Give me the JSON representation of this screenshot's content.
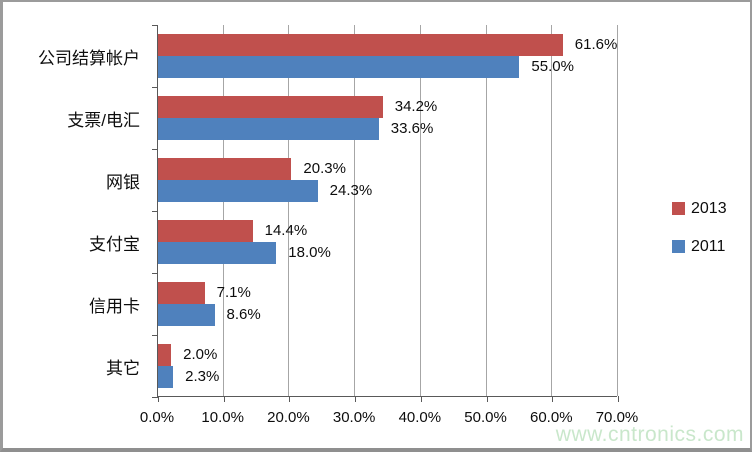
{
  "watermark": {
    "text": "www.cntronics.com",
    "color": "#c7e6c9"
  },
  "chart_data": {
    "type": "bar",
    "orientation": "horizontal",
    "title": "",
    "categories": [
      "公司结算帐户",
      "支票/电汇",
      "网银",
      "支付宝",
      "信用卡",
      "其它"
    ],
    "series": [
      {
        "name": "2013",
        "color": "#c0504d",
        "values": [
          61.6,
          34.2,
          20.3,
          14.4,
          7.1,
          2.0
        ],
        "labels": [
          "61.6%",
          "34.2%",
          "20.3%",
          "14.4%",
          "7.1%",
          "2.0%"
        ]
      },
      {
        "name": "2011",
        "color": "#4f81bd",
        "values": [
          55.0,
          33.6,
          24.3,
          18.0,
          8.6,
          2.3
        ],
        "labels": [
          "55.0%",
          "33.6%",
          "24.3%",
          "18.0%",
          "8.6%",
          "2.3%"
        ]
      }
    ],
    "x_tick_labels": [
      "0.0%",
      "10.0%",
      "20.0%",
      "30.0%",
      "40.0%",
      "50.0%",
      "60.0%",
      "70.0%"
    ],
    "xlim": [
      0,
      70
    ],
    "x_tick_step": 10,
    "grid": true,
    "gridline_color": "#a6a6a6",
    "axis_color": "#595959",
    "legend_position": "right"
  }
}
